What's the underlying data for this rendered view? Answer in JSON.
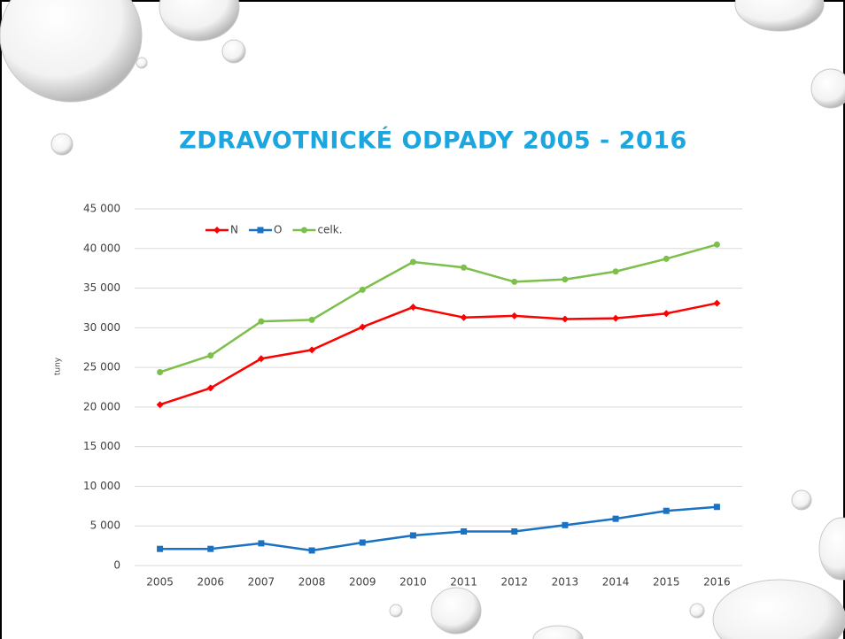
{
  "chart_data": {
    "type": "line",
    "title": "ZDRAVOTNICKÉ ODPADY 2005 - 2016",
    "y_label": "tuny",
    "categories": [
      "2005",
      "2006",
      "2007",
      "2008",
      "2009",
      "2010",
      "2011",
      "2012",
      "2013",
      "2014",
      "2015",
      "2016"
    ],
    "series": [
      {
        "name": "N",
        "color": "#ff0000",
        "marker": "diamond",
        "values": [
          20300,
          22400,
          26100,
          27200,
          30100,
          32600,
          31300,
          31500,
          31100,
          31200,
          31800,
          33100
        ]
      },
      {
        "name": "O",
        "color": "#1a72c4",
        "marker": "square",
        "values": [
          2100,
          2100,
          2800,
          1900,
          2900,
          3800,
          4300,
          4300,
          5100,
          5900,
          6900,
          7400
        ]
      },
      {
        "name": "celk.",
        "color": "#7cbf4a",
        "marker": "circle",
        "values": [
          24400,
          26500,
          30800,
          31000,
          34800,
          38300,
          37600,
          35800,
          36100,
          37100,
          38700,
          40500
        ]
      }
    ],
    "ylim": [
      0,
      45000
    ],
    "yticks": [
      0,
      {
        "value": 5000,
        "label": "5 000"
      },
      {
        "value": 10000,
        "label": "10 000"
      },
      {
        "value": 15000,
        "label": "15 000"
      },
      {
        "value": 20000,
        "label": "20 000"
      },
      {
        "value": 25000,
        "label": "25 000"
      },
      {
        "value": 30000,
        "label": "30 000"
      },
      {
        "value": 35000,
        "label": "35 000"
      },
      {
        "value": 40000,
        "label": "40 000"
      },
      {
        "value": 45000,
        "label": "45 000"
      }
    ],
    "grid": true,
    "legend": "top-left"
  }
}
